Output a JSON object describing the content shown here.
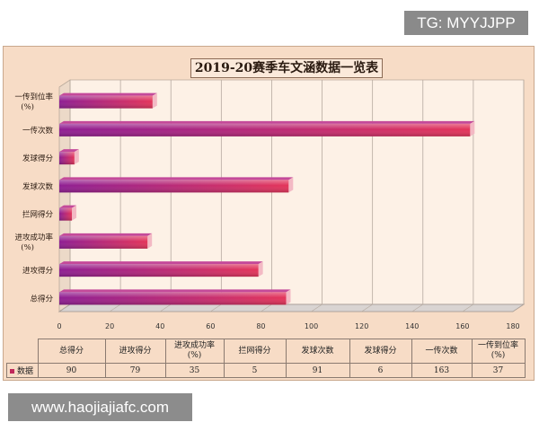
{
  "watermark_top": "TG: MYYJJPP",
  "watermark_bottom": "www.haojiajiafc.com",
  "colors": {
    "bar_start": "#a0208c",
    "bar_end": "#e03456",
    "frame": "#f7dcc6"
  },
  "chart_data": {
    "type": "bar",
    "orientation": "horizontal",
    "title": "2019-20赛季车文涵数据一览表",
    "categories": [
      "一传到位率(%)",
      "一传次数",
      "发球得分",
      "发球次数",
      "拦网得分",
      "进攻成功率(%)",
      "进攻得分",
      "总得分"
    ],
    "values": [
      37,
      163,
      6,
      91,
      5,
      35,
      79,
      90
    ],
    "xlim": [
      0,
      180
    ],
    "xticks": [
      "0",
      "20",
      "40",
      "60",
      "80",
      "100",
      "120",
      "140",
      "160",
      "180"
    ],
    "grid": true,
    "series": [
      {
        "name": "数据",
        "values": [
          37,
          163,
          6,
          91,
          5,
          35,
          79,
          90
        ]
      }
    ]
  },
  "table": {
    "headers": [
      "总得分",
      "进攻得分",
      "进攻成功率\n(%)",
      "拦网得分",
      "发球次数",
      "发球得分",
      "一传次数",
      "一传到位率\n(%)"
    ],
    "row_label": "数据",
    "values": [
      "90",
      "79",
      "35",
      "5",
      "91",
      "6",
      "163",
      "37"
    ]
  }
}
